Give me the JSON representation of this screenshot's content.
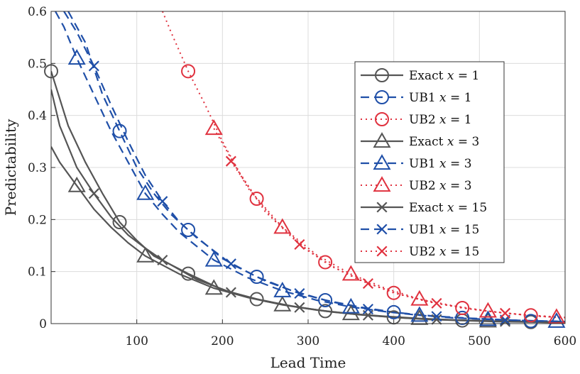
{
  "chart_data": {
    "type": "line",
    "title": "",
    "xlabel": "Lead Time",
    "ylabel": "Predictability",
    "xlim": [
      0,
      600
    ],
    "ylim": [
      0,
      0.6
    ],
    "xticks": [
      100,
      200,
      300,
      400,
      500,
      600
    ],
    "yticks": [
      0,
      0.1,
      0.2,
      0.3,
      0.4,
      0.5,
      0.6
    ],
    "grid": true,
    "legend_position": "top-right",
    "colors": {
      "exact": "#555555",
      "ub1": "#1f4fa8",
      "ub2": "#e0323f"
    },
    "series": [
      {
        "name": "Exact x = 1",
        "label_text": "Exact",
        "label_var": "x",
        "label_val": "= 1",
        "group": "exact",
        "marker": "circle",
        "x": [
          0,
          20,
          40,
          60,
          80,
          100,
          120,
          160,
          200,
          240,
          280,
          320,
          360,
          400,
          440,
          480,
          520,
          560,
          600
        ],
        "y": [
          0.485,
          0.38,
          0.31,
          0.25,
          0.195,
          0.16,
          0.13,
          0.096,
          0.065,
          0.047,
          0.034,
          0.024,
          0.017,
          0.012,
          0.008,
          0.006,
          0.004,
          0.003,
          0.002
        ],
        "marker_x": [
          0,
          80,
          160,
          240,
          320,
          400,
          480,
          560
        ]
      },
      {
        "name": "UB1 x = 1",
        "label_text": "UB1",
        "label_var": "x",
        "label_val": "= 1",
        "group": "ub1",
        "marker": "circle",
        "x": [
          20,
          40,
          60,
          80,
          100,
          120,
          140,
          160,
          200,
          240,
          280,
          320,
          360,
          400,
          440,
          480,
          520,
          560,
          600
        ],
        "y": [
          0.6,
          0.54,
          0.44,
          0.37,
          0.3,
          0.25,
          0.21,
          0.18,
          0.125,
          0.09,
          0.064,
          0.045,
          0.032,
          0.022,
          0.015,
          0.011,
          0.008,
          0.005,
          0.004
        ],
        "marker_x": [
          80,
          160,
          240,
          320,
          400,
          480,
          560
        ]
      },
      {
        "name": "UB2 x = 1",
        "label_text": "UB2",
        "label_var": "x",
        "label_val": "= 1",
        "group": "ub2",
        "marker": "circle",
        "x": [
          130,
          140,
          160,
          180,
          200,
          220,
          240,
          260,
          280,
          300,
          320,
          340,
          360,
          400,
          440,
          480,
          520,
          560,
          600
        ],
        "y": [
          0.6,
          0.56,
          0.485,
          0.42,
          0.35,
          0.29,
          0.24,
          0.2,
          0.17,
          0.14,
          0.118,
          0.1,
          0.084,
          0.059,
          0.042,
          0.03,
          0.022,
          0.016,
          0.012
        ],
        "marker_x": [
          160,
          240,
          320,
          400,
          480,
          560
        ]
      },
      {
        "name": "Exact x = 3",
        "label_text": "Exact",
        "label_var": "x",
        "label_val": "= 3",
        "group": "exact",
        "marker": "triangle",
        "x": [
          0,
          10,
          30,
          50,
          70,
          90,
          110,
          150,
          190,
          230,
          270,
          310,
          350,
          390,
          430,
          470,
          510,
          550,
          600
        ],
        "y": [
          0.34,
          0.31,
          0.265,
          0.22,
          0.185,
          0.155,
          0.13,
          0.095,
          0.068,
          0.05,
          0.036,
          0.026,
          0.019,
          0.014,
          0.01,
          0.007,
          0.005,
          0.004,
          0.003
        ],
        "marker_x": [
          30,
          110,
          190,
          270,
          350,
          430,
          510
        ]
      },
      {
        "name": "UB1 x = 3",
        "label_text": "UB1",
        "label_var": "x",
        "label_val": "= 3",
        "group": "ub1",
        "marker": "triangle",
        "x": [
          5,
          15,
          30,
          50,
          70,
          90,
          110,
          130,
          150,
          190,
          230,
          270,
          310,
          350,
          390,
          430,
          470,
          510,
          550,
          600
        ],
        "y": [
          0.6,
          0.57,
          0.51,
          0.44,
          0.37,
          0.31,
          0.25,
          0.21,
          0.175,
          0.122,
          0.088,
          0.063,
          0.045,
          0.032,
          0.023,
          0.016,
          0.011,
          0.008,
          0.006,
          0.004
        ],
        "marker_x": [
          30,
          110,
          190,
          270,
          350,
          430,
          510,
          590
        ]
      },
      {
        "name": "UB2 x = 3",
        "label_text": "UB2",
        "label_var": "x",
        "label_val": "= 3",
        "group": "ub2",
        "marker": "triangle",
        "x": [
          190,
          230,
          270,
          310,
          350,
          390,
          430,
          470,
          510,
          550,
          590
        ],
        "y": [
          0.375,
          0.26,
          0.185,
          0.132,
          0.095,
          0.068,
          0.047,
          0.034,
          0.024,
          0.017,
          0.012
        ],
        "marker_x": [
          190,
          270,
          350,
          430,
          510,
          590
        ]
      },
      {
        "name": "Exact x = 15",
        "label_text": "Exact",
        "label_var": "x",
        "label_val": "= 15",
        "group": "exact",
        "marker": "x",
        "x": [
          0,
          10,
          30,
          50,
          70,
          90,
          110,
          130,
          170,
          210,
          250,
          290,
          330,
          370,
          410,
          450,
          490,
          530,
          570,
          600
        ],
        "y": [
          0.45,
          0.38,
          0.3,
          0.25,
          0.205,
          0.17,
          0.145,
          0.122,
          0.085,
          0.06,
          0.043,
          0.031,
          0.022,
          0.016,
          0.011,
          0.008,
          0.006,
          0.004,
          0.003,
          0.002
        ],
        "marker_x": [
          50,
          130,
          210,
          290,
          370,
          450,
          530
        ]
      },
      {
        "name": "UB1 x = 15",
        "label_text": "UB1",
        "label_var": "x",
        "label_val": "= 15",
        "group": "ub1",
        "marker": "x",
        "x": [
          15,
          30,
          50,
          70,
          90,
          110,
          130,
          150,
          170,
          210,
          250,
          290,
          330,
          370,
          410,
          450,
          490,
          530,
          570,
          600
        ],
        "y": [
          0.6,
          0.56,
          0.495,
          0.42,
          0.35,
          0.285,
          0.235,
          0.195,
          0.165,
          0.115,
          0.082,
          0.058,
          0.041,
          0.028,
          0.02,
          0.014,
          0.01,
          0.007,
          0.005,
          0.004
        ],
        "marker_x": [
          50,
          130,
          210,
          290,
          370,
          450,
          530
        ]
      },
      {
        "name": "UB2 x = 15",
        "label_text": "UB2",
        "label_var": "x",
        "label_val": "= 15",
        "group": "ub2",
        "marker": "x",
        "x": [
          210,
          250,
          290,
          330,
          370,
          410,
          450,
          490,
          530,
          570,
          600
        ],
        "y": [
          0.312,
          0.215,
          0.152,
          0.108,
          0.077,
          0.055,
          0.039,
          0.028,
          0.02,
          0.014,
          0.011
        ],
        "marker_x": [
          210,
          290,
          370,
          450,
          530
        ]
      }
    ]
  }
}
